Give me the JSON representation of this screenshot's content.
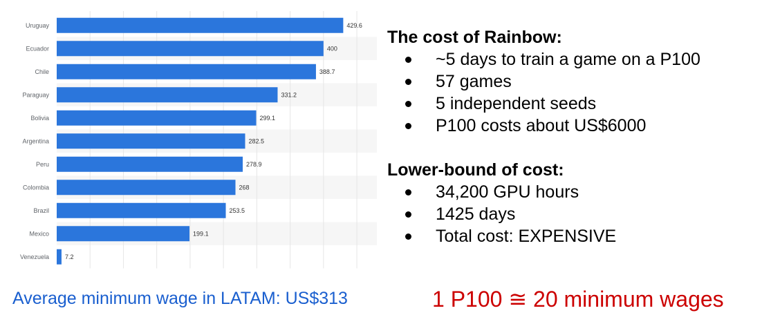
{
  "chart_data": {
    "type": "bar",
    "orientation": "horizontal",
    "categories": [
      "Uruguay",
      "Ecuador",
      "Chile",
      "Paraguay",
      "Bolivia",
      "Argentina",
      "Peru",
      "Colombia",
      "Brazil",
      "Mexico",
      "Venezuela"
    ],
    "values": [
      429.6,
      400,
      388.7,
      331.2,
      299.1,
      282.5,
      278.9,
      268,
      253.5,
      199.1,
      7.2
    ],
    "value_labels": [
      "429.6",
      "400",
      "388.7",
      "331.2",
      "299.1",
      "282.5",
      "278.9",
      "268",
      "253.5",
      "199.1",
      "7.2"
    ],
    "xlim": [
      0,
      480
    ],
    "grid": true,
    "bar_color": "#2b76dc",
    "title": "",
    "xlabel": "",
    "ylabel": ""
  },
  "rainbow": {
    "heading": "The cost of Rainbow:",
    "items": [
      "~5 days to train a game on a P100",
      "57 games",
      "5 independent seeds",
      "P100 costs about US$6000"
    ]
  },
  "lower_bound": {
    "heading": "Lower-bound of cost:",
    "items": [
      "34,200 GPU hours",
      "1425 days",
      "Total cost: EXPENSIVE"
    ]
  },
  "captions": {
    "left": "Average minimum wage in LATAM: US$313",
    "right": "1 P100 ≅ 20 minimum wages"
  },
  "colors": {
    "caption_left": "#1a5fcf",
    "caption_right": "#cc0000"
  }
}
